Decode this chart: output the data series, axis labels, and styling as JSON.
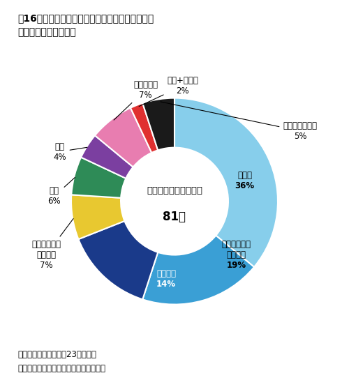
{
  "title_line1": "図16　国内上場創薬ベンチャー；ライセンスアウ",
  "title_line2": "ト契約の対象地域割合",
  "center_text_line1": "ライセンスアウト契約",
  "center_text_line2": "81件",
  "note_line1": "注：対象地域が不明の23件を除外",
  "note_line2": "出所：各社プレスリリースをもとに作成",
  "slices": [
    {
      "label": "全世界",
      "pct": 36,
      "color": "#87CEEB",
      "label_inside": true,
      "text_color": "#000000"
    },
    {
      "label": "アジア（日本\nを除く）",
      "pct": 19,
      "color": "#3A9FD5",
      "label_inside": true,
      "text_color": "#000000"
    },
    {
      "label": "日本のみ",
      "pct": 14,
      "color": "#1A3A8A",
      "label_inside": true,
      "text_color": "#FFFFFF"
    },
    {
      "label": "全世界（一部\nを除く）",
      "pct": 7,
      "color": "#E8C830",
      "label_inside": false,
      "text_color": "#000000"
    },
    {
      "label": "北米",
      "pct": 6,
      "color": "#2E8B57",
      "label_inside": false,
      "text_color": "#000000"
    },
    {
      "label": "欧州",
      "pct": 4,
      "color": "#7B3FA0",
      "label_inside": false,
      "text_color": "#000000"
    },
    {
      "label": "その他地域",
      "pct": 7,
      "color": "#E87DB0",
      "label_inside": false,
      "text_color": "#000000"
    },
    {
      "label": "日本+アジア",
      "pct": 2,
      "color": "#E03030",
      "label_inside": false,
      "text_color": "#000000"
    },
    {
      "label": "複数地域組合せ",
      "pct": 5,
      "color": "#1A1A1A",
      "label_inside": false,
      "text_color": "#000000"
    }
  ],
  "background_color": "#FFFFFF"
}
